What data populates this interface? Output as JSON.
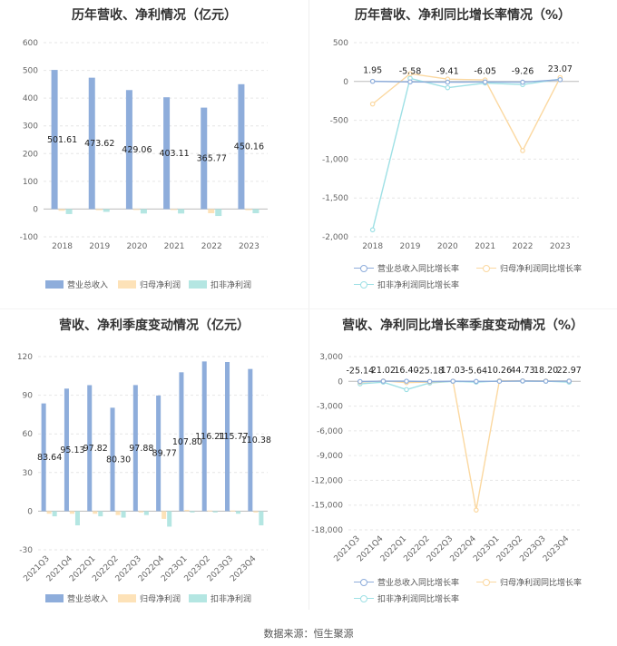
{
  "source": "数据来源：恒生聚源",
  "colors": {
    "revenue": "#8eaddb",
    "net_profit": "#fde2b8",
    "deducted": "#b4e6e2",
    "revenue_line": "#8eaddb",
    "net_profit_line": "#fbd8a0",
    "deducted_line": "#9ee0e5",
    "grid": "#e6e6e6",
    "axis_text": "#666666"
  },
  "legends": {
    "bar": [
      "营业总收入",
      "归母净利润",
      "扣非净利润"
    ],
    "line": [
      "营业总收入同比增长率",
      "归母净利润同比增长率",
      "扣非净利润同比增长率"
    ]
  },
  "chart_data": [
    {
      "type": "bar",
      "title": "历年营收、净利情况（亿元）",
      "categories": [
        "2018",
        "2019",
        "2020",
        "2021",
        "2022",
        "2023"
      ],
      "series": [
        {
          "name": "营业总收入",
          "values": [
            501.61,
            473.62,
            429.06,
            403.11,
            365.77,
            450.16
          ]
        },
        {
          "name": "归母净利润",
          "values": [
            -6,
            -4,
            -3,
            -3,
            -15,
            -4
          ]
        },
        {
          "name": "扣非净利润",
          "values": [
            -18,
            -10,
            -16,
            -16,
            -25,
            -15
          ]
        }
      ],
      "data_labels": [
        "501.61",
        "473.62",
        "429.06",
        "403.11",
        "365.77",
        "450.16"
      ],
      "ylim": [
        -100,
        600
      ],
      "yticks": [
        -100,
        0,
        100,
        200,
        300,
        400,
        500,
        600
      ],
      "grid": true,
      "legend": "bottom"
    },
    {
      "type": "line",
      "title": "历年营收、净利同比增长率情况（%）",
      "categories": [
        "2018",
        "2019",
        "2020",
        "2021",
        "2022",
        "2023"
      ],
      "series": [
        {
          "name": "营业总收入同比增长率",
          "values": [
            1.95,
            -5.58,
            -9.41,
            -6.05,
            -9.26,
            23.07
          ]
        },
        {
          "name": "归母净利润同比增长率",
          "values": [
            -290,
            100,
            30,
            20,
            -890,
            50
          ]
        },
        {
          "name": "扣非净利润同比增长率",
          "values": [
            -1910,
            40,
            -80,
            -20,
            -40,
            30
          ]
        }
      ],
      "data_labels": [
        "1.95",
        "-5.58",
        "-9.41",
        "-6.05",
        "-9.26",
        "23.07"
      ],
      "ylim": [
        -2000,
        500
      ],
      "yticks": [
        -2000,
        -1500,
        -1000,
        -500,
        0,
        500
      ],
      "grid": true,
      "legend": "bottom"
    },
    {
      "type": "bar",
      "title": "营收、净利季度变动情况（亿元）",
      "categories": [
        "2021Q3",
        "2021Q4",
        "2022Q1",
        "2022Q2",
        "2022Q3",
        "2022Q4",
        "2023Q1",
        "2023Q2",
        "2023Q3",
        "2023Q4"
      ],
      "series": [
        {
          "name": "营业总收入",
          "values": [
            83.64,
            95.13,
            97.82,
            80.3,
            97.88,
            89.77,
            107.8,
            116.21,
            115.77,
            110.38
          ]
        },
        {
          "name": "归母净利润",
          "values": [
            -2,
            -2,
            -2,
            -3,
            -1,
            -6,
            1,
            0.5,
            0.5,
            -1
          ]
        },
        {
          "name": "扣非净利润",
          "values": [
            -4,
            -11,
            -4,
            -5,
            -3,
            -12,
            -1,
            -1,
            -2,
            -11
          ]
        }
      ],
      "data_labels": [
        "83.64",
        "95.13",
        "97.82",
        "80.30",
        "97.88",
        "89.77",
        "107.80",
        "116.21",
        "115.77",
        "110.38"
      ],
      "ylim": [
        -30,
        120
      ],
      "yticks": [
        -30,
        0,
        30,
        60,
        90,
        120
      ],
      "grid": true,
      "legend": "bottom"
    },
    {
      "type": "line",
      "title": "营收、净利同比增长率季度变动情况（%）",
      "categories": [
        "2021Q3",
        "2021Q4",
        "2022Q1",
        "2022Q2",
        "2022Q3",
        "2022Q4",
        "2023Q1",
        "2023Q2",
        "2023Q3",
        "2023Q4"
      ],
      "series": [
        {
          "name": "营业总收入同比增长率",
          "values": [
            -25.14,
            21.02,
            16.4,
            -25.18,
            17.03,
            -5.64,
            10.26,
            44.73,
            18.2,
            22.97
          ]
        },
        {
          "name": "归母净利润同比增长率",
          "values": [
            -100,
            50,
            -150,
            -80,
            20,
            -15600,
            80,
            60,
            50,
            40
          ]
        },
        {
          "name": "扣非净利润同比增长率",
          "values": [
            -300,
            -100,
            -1000,
            -200,
            0,
            -100,
            50,
            30,
            20,
            -100
          ]
        }
      ],
      "data_labels": [
        "-25.14",
        "21.02",
        "16.40",
        "-25.18",
        "17.03",
        "-5.64",
        "10.26",
        "44.73",
        "18.20",
        "22.97"
      ],
      "ylim": [
        -18000,
        3000
      ],
      "yticks": [
        -18000,
        -15000,
        -12000,
        -9000,
        -6000,
        -3000,
        0,
        3000
      ],
      "grid": true,
      "legend": "bottom"
    }
  ]
}
